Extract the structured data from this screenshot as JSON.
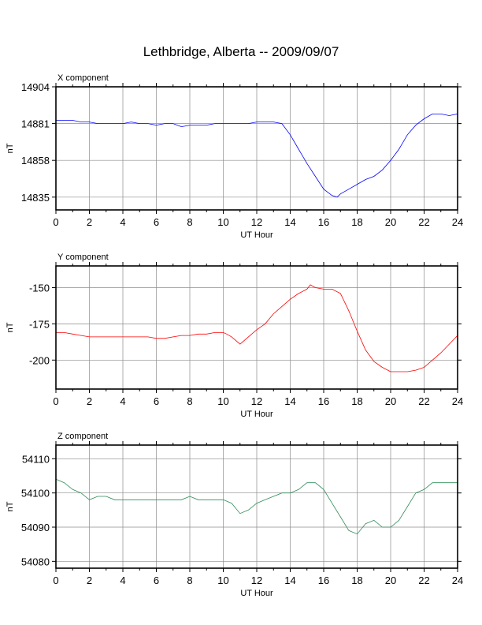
{
  "page": {
    "title": "Lethbridge, Alberta -- 2009/09/07"
  },
  "chart_data": [
    {
      "type": "line",
      "panel_title": "X component",
      "xlabel": "UT Hour",
      "ylabel": "nT",
      "xlim": [
        0,
        24
      ],
      "ylim": [
        14827,
        14904
      ],
      "x_ticks": [
        0,
        2,
        4,
        6,
        8,
        10,
        12,
        14,
        16,
        18,
        20,
        22,
        24
      ],
      "y_ticks": [
        14835,
        14858,
        14881,
        14904
      ],
      "grid": true,
      "color": "#0000ff",
      "series": [
        {
          "x": [
            0,
            0.5,
            1,
            1.5,
            2,
            2.5,
            3,
            3.5,
            4,
            4.5,
            5,
            5.5,
            6,
            6.5,
            7,
            7.5,
            8,
            8.5,
            9,
            9.5,
            10,
            10.5,
            11,
            11.5,
            12,
            12.5,
            13,
            13.5,
            14,
            14.5,
            15,
            15.5,
            16,
            16.5,
            16.8,
            17,
            17.5,
            18,
            18.5,
            19,
            19.5,
            20,
            20.5,
            21,
            21.5,
            22,
            22.5,
            23,
            23.5,
            24
          ],
          "values": [
            14883,
            14883,
            14883,
            14882,
            14882,
            14881,
            14881,
            14881,
            14881,
            14882,
            14881,
            14881,
            14880,
            14881,
            14881,
            14879,
            14880,
            14880,
            14880,
            14881,
            14881,
            14881,
            14881,
            14881,
            14882,
            14882,
            14882,
            14881,
            14874,
            14865,
            14856,
            14848,
            14840,
            14836,
            14835,
            14837,
            14840,
            14843,
            14846,
            14848,
            14852,
            14858,
            14865,
            14874,
            14880,
            14884,
            14887,
            14887,
            14886,
            14887
          ]
        }
      ]
    },
    {
      "type": "line",
      "panel_title": "Y component",
      "xlabel": "UT Hour",
      "ylabel": "nT",
      "xlim": [
        0,
        24
      ],
      "ylim": [
        -220,
        -135
      ],
      "x_ticks": [
        0,
        2,
        4,
        6,
        8,
        10,
        12,
        14,
        16,
        18,
        20,
        22,
        24
      ],
      "y_ticks": [
        -150,
        -175,
        -200
      ],
      "grid": true,
      "color": "#ff0000",
      "series": [
        {
          "x": [
            0,
            0.5,
            1,
            1.5,
            2,
            2.5,
            3,
            3.5,
            4,
            4.5,
            5,
            5.5,
            6,
            6.5,
            7,
            7.5,
            8,
            8.5,
            9,
            9.5,
            10,
            10.2,
            10.5,
            11,
            11.5,
            12,
            12.5,
            13,
            13.5,
            14,
            14.5,
            15,
            15.2,
            15.5,
            16,
            16.5,
            17,
            17.5,
            18,
            18.5,
            19,
            19.5,
            20,
            20.5,
            21,
            21.5,
            22,
            22.5,
            23,
            23.5,
            24
          ],
          "values": [
            -181,
            -181,
            -182,
            -183,
            -184,
            -184,
            -184,
            -184,
            -184,
            -184,
            -184,
            -184,
            -185,
            -185,
            -184,
            -183,
            -183,
            -182,
            -182,
            -181,
            -181,
            -182,
            -184,
            -189,
            -184,
            -179,
            -175,
            -168,
            -163,
            -158,
            -154,
            -151,
            -148,
            -150,
            -151,
            -151,
            -154,
            -166,
            -180,
            -193,
            -201,
            -205,
            -208,
            -208,
            -208,
            -207,
            -205,
            -200,
            -195,
            -189,
            -183
          ]
        }
      ]
    },
    {
      "type": "line",
      "panel_title": "Z component",
      "xlabel": "UT Hour",
      "ylabel": "nT",
      "xlim": [
        0,
        24
      ],
      "ylim": [
        54078,
        54114
      ],
      "x_ticks": [
        0,
        2,
        4,
        6,
        8,
        10,
        12,
        14,
        16,
        18,
        20,
        22,
        24
      ],
      "y_ticks": [
        54080,
        54090,
        54100,
        54110
      ],
      "grid": true,
      "color": "#2e8b57",
      "series": [
        {
          "x": [
            0,
            0.5,
            1,
            1.5,
            2,
            2.5,
            3,
            3.5,
            4,
            4.5,
            5,
            5.5,
            6,
            6.5,
            7,
            7.5,
            8,
            8.5,
            9,
            9.5,
            10,
            10.5,
            11,
            11.5,
            12,
            12.5,
            13,
            13.5,
            14,
            14.5,
            15,
            15.5,
            16,
            16.5,
            17,
            17.5,
            18,
            18.5,
            19,
            19.5,
            20,
            20.5,
            21,
            21.5,
            22,
            22.5,
            23,
            23.5,
            24
          ],
          "values": [
            54104,
            54103,
            54101,
            54100,
            54098,
            54099,
            54099,
            54098,
            54098,
            54098,
            54098,
            54098,
            54098,
            54098,
            54098,
            54098,
            54099,
            54098,
            54098,
            54098,
            54098,
            54097,
            54094,
            54095,
            54097,
            54098,
            54099,
            54100,
            54100,
            54101,
            54103,
            54103,
            54101,
            54097,
            54093,
            54089,
            54088,
            54091,
            54092,
            54090,
            54090,
            54092,
            54096,
            54100,
            54101,
            54103,
            54103,
            54103,
            54103
          ]
        }
      ]
    }
  ]
}
